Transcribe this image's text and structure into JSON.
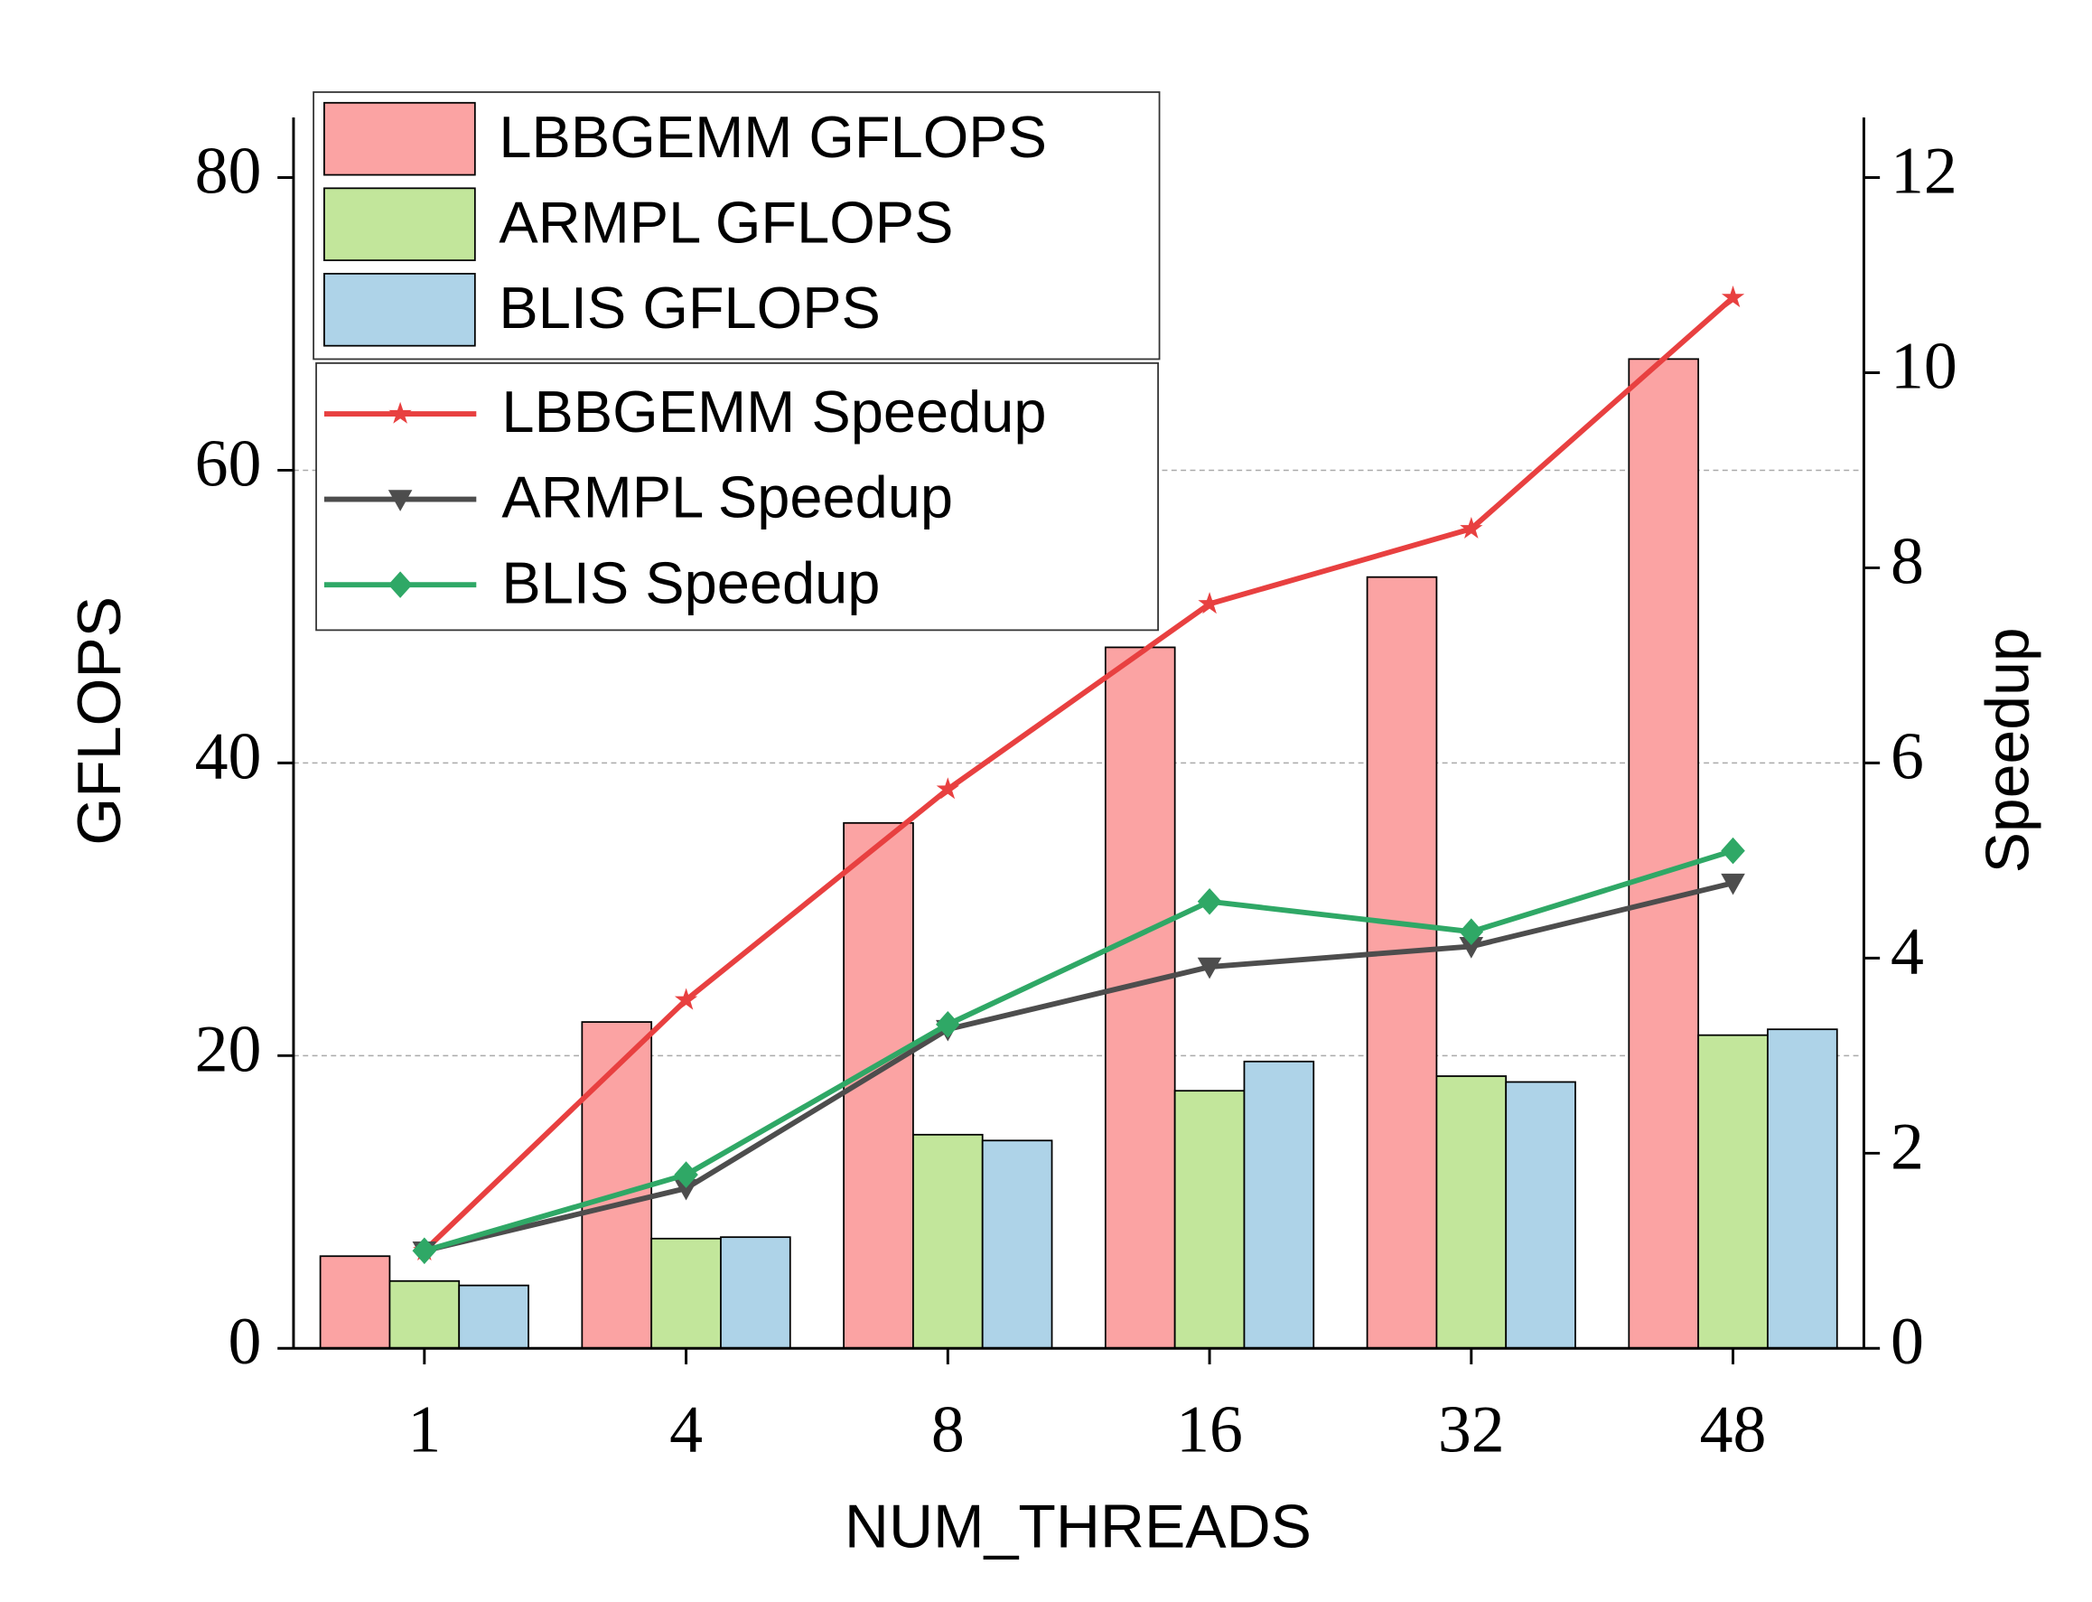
{
  "chart_data": {
    "type": "bar",
    "x_label": "NUM_THREADS",
    "y_label": "GFLOPS",
    "y2_label": "Speedup",
    "categories": [
      "1",
      "4",
      "8",
      "16",
      "32",
      "48"
    ],
    "ylim": [
      0,
      80
    ],
    "yticks": [
      0,
      20,
      40,
      60,
      80
    ],
    "y2lim": [
      0,
      12
    ],
    "y2ticks": [
      0,
      2,
      4,
      6,
      8,
      10,
      12
    ],
    "grid": true,
    "series": [
      {
        "name": "LBBGEMM GFLOPS",
        "type": "bar",
        "color": "#fba3a3",
        "values": [
          6.3,
          22.3,
          35.9,
          47.9,
          52.7,
          67.6
        ]
      },
      {
        "name": "ARMPL GFLOPS",
        "type": "bar",
        "color": "#c2e69b",
        "values": [
          4.6,
          7.5,
          14.6,
          17.6,
          18.6,
          21.4
        ]
      },
      {
        "name": "BLIS GFLOPS",
        "type": "bar",
        "color": "#aed3e8",
        "values": [
          4.3,
          7.6,
          14.2,
          19.6,
          18.2,
          21.8
        ]
      },
      {
        "name": "LBBGEMM Speedup",
        "type": "line",
        "axis": "y2",
        "marker": "star",
        "color": "#e84040",
        "values": [
          1.0,
          3.57,
          5.73,
          7.63,
          8.4,
          10.77
        ]
      },
      {
        "name": "ARMPL Speedup",
        "type": "line",
        "axis": "y2",
        "marker": "triangle-down",
        "color": "#4d4d4d",
        "values": [
          1.0,
          1.64,
          3.27,
          3.91,
          4.12,
          4.77
        ]
      },
      {
        "name": "BLIS Speedup",
        "type": "line",
        "axis": "y2",
        "marker": "diamond",
        "color": "#2fa866",
        "values": [
          1.0,
          1.78,
          3.32,
          4.58,
          4.27,
          5.1
        ]
      }
    ]
  }
}
